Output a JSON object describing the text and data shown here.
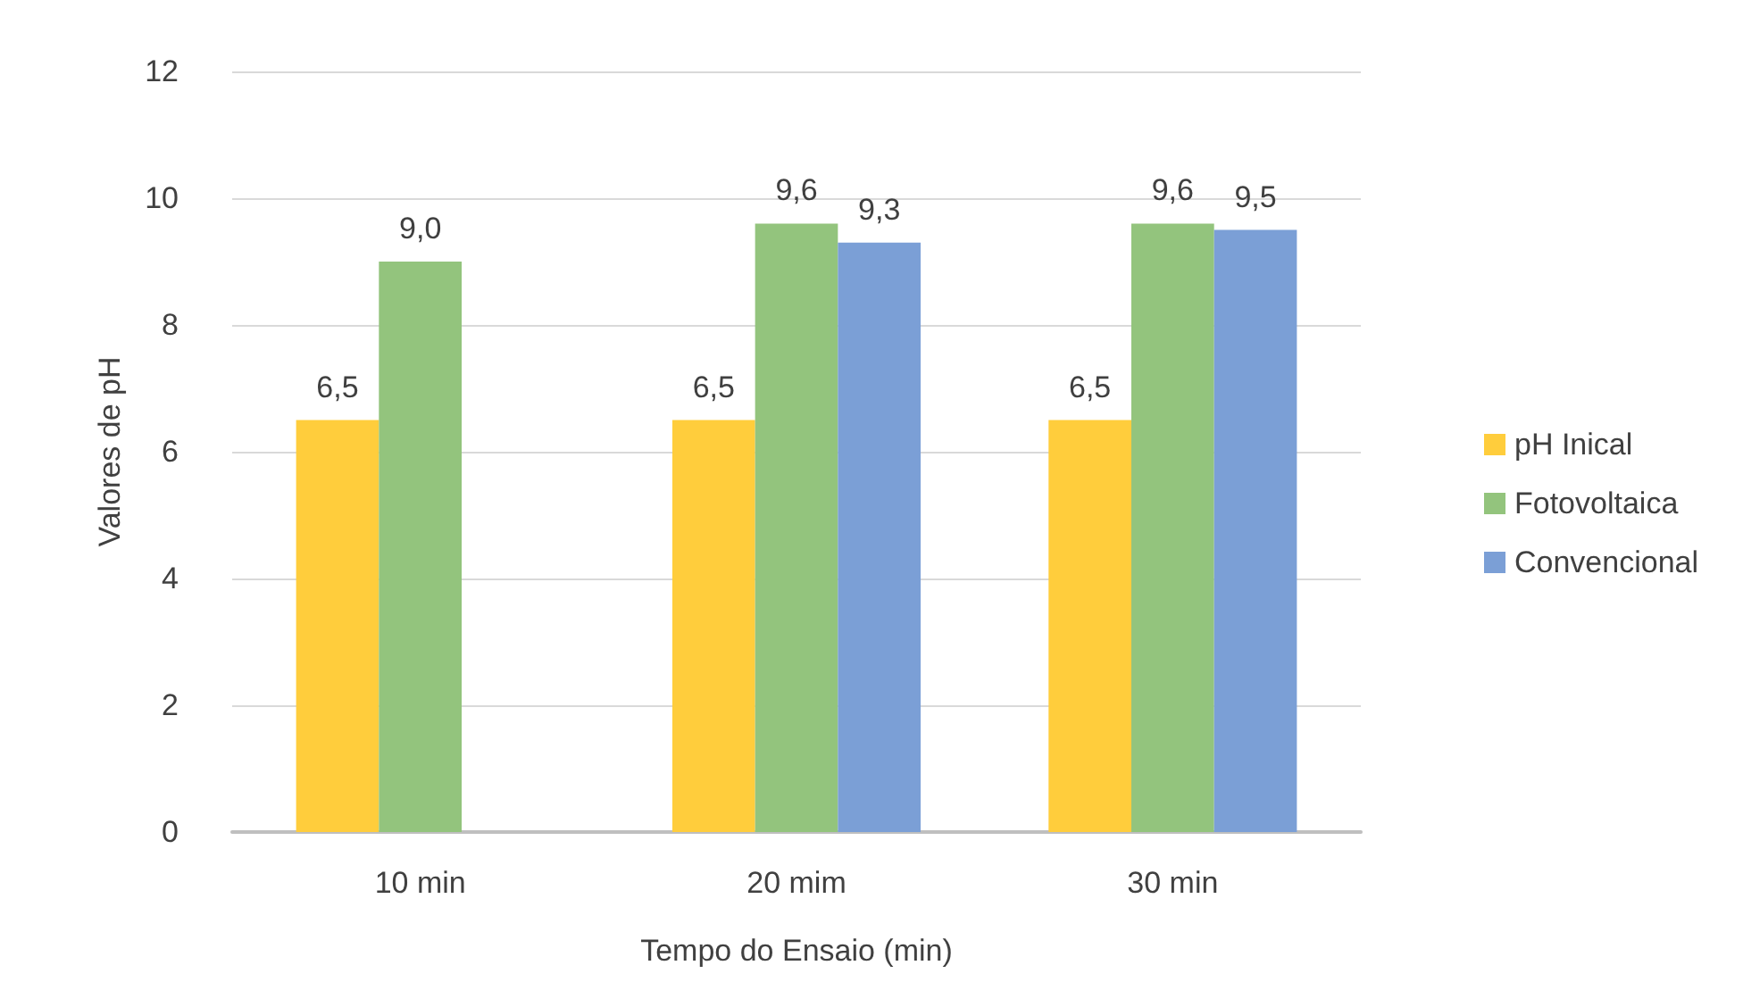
{
  "chart_data": {
    "type": "bar",
    "xlabel": "Tempo do Ensaio (min)",
    "ylabel": "Valores de pH",
    "categories": [
      "10 min",
      "20 mim",
      "30 min"
    ],
    "series": [
      {
        "name": "pH Inical",
        "color": "#ffcd3c",
        "values": [
          6.5,
          6.5,
          6.5
        ],
        "value_labels": [
          "6,5",
          "6,5",
          "6,5"
        ]
      },
      {
        "name": "Fotovoltaica",
        "color": "#93c47d",
        "values": [
          9.0,
          9.6,
          9.6
        ],
        "value_labels": [
          "9,0",
          "9,6",
          "9,6"
        ]
      },
      {
        "name": "Convencional",
        "color": "#7b9fd6",
        "values": [
          null,
          9.3,
          9.5
        ],
        "value_labels": [
          null,
          "9,3",
          "9,5"
        ]
      }
    ],
    "ylim": [
      0,
      12
    ],
    "yticks": [
      0,
      2,
      4,
      6,
      8,
      10,
      12
    ],
    "grid": "y",
    "legend": "right"
  }
}
